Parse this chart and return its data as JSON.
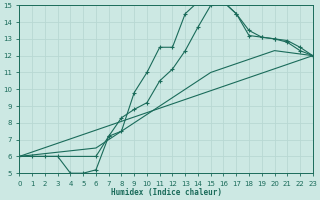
{
  "bg_color": "#cce8e3",
  "line_color": "#1a6b5a",
  "grid_color": "#b8d8d3",
  "xlabel": "Humidex (Indice chaleur)",
  "xlim": [
    0,
    23
  ],
  "ylim": [
    5,
    15
  ],
  "xticks": [
    0,
    1,
    2,
    3,
    4,
    5,
    6,
    7,
    8,
    9,
    10,
    11,
    12,
    13,
    14,
    15,
    16,
    17,
    18,
    19,
    20,
    21,
    22,
    23
  ],
  "yticks": [
    5,
    6,
    7,
    8,
    9,
    10,
    11,
    12,
    13,
    14,
    15
  ],
  "line1_x": [
    0,
    1,
    2,
    3,
    4,
    5,
    6,
    7,
    8,
    9,
    10,
    11,
    12,
    13,
    14,
    15,
    16,
    17,
    18,
    19,
    20,
    21,
    22,
    23
  ],
  "line1_y": [
    6,
    6,
    6,
    6,
    5,
    5,
    5.2,
    7.2,
    7.5,
    9.8,
    11.0,
    12.5,
    12.5,
    14.5,
    15.2,
    15.2,
    15.2,
    14.5,
    13.2,
    13.1,
    13.0,
    12.8,
    12.3,
    12.0
  ],
  "line2_x": [
    0,
    6,
    7,
    8,
    9,
    10,
    11,
    12,
    13,
    14,
    15,
    16,
    17,
    18,
    19,
    20,
    21,
    22,
    23
  ],
  "line2_y": [
    6,
    6,
    7.2,
    8.3,
    8.8,
    9.2,
    10.5,
    11.2,
    12.3,
    13.7,
    15.0,
    15.2,
    14.5,
    13.5,
    13.1,
    13.0,
    12.9,
    12.5,
    12.0
  ],
  "line3_x": [
    0,
    23
  ],
  "line3_y": [
    6,
    12.0
  ],
  "line4_x": [
    0,
    6,
    10,
    15,
    20,
    23
  ],
  "line4_y": [
    6,
    6.5,
    8.5,
    11.0,
    12.3,
    12.0
  ]
}
